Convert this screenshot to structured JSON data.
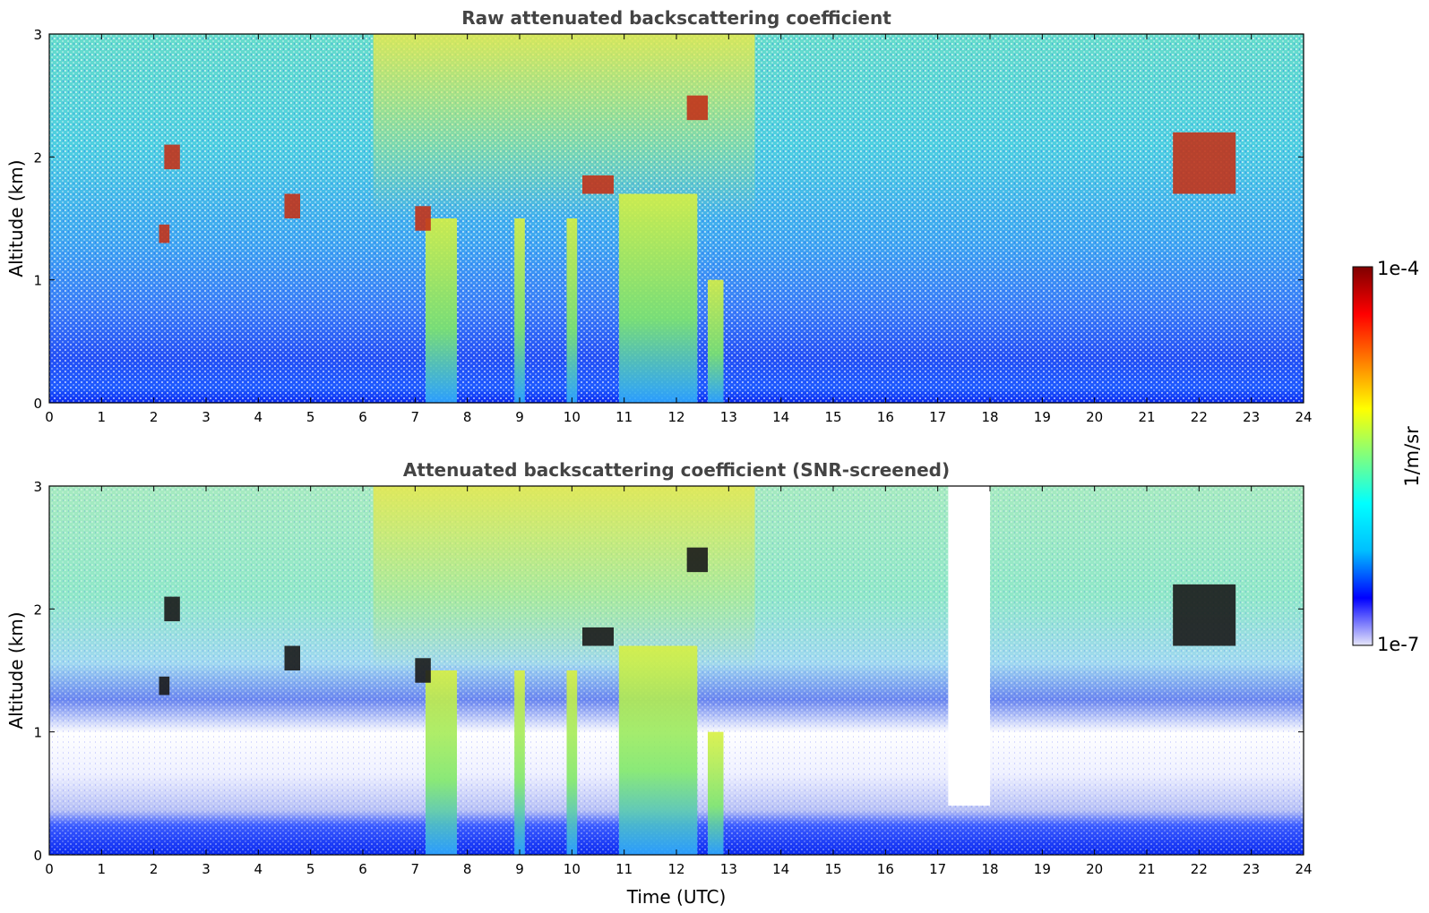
{
  "chart_data": [
    {
      "type": "heatmap",
      "title": "Raw attenuated backscattering coefficient",
      "xlabel": "",
      "ylabel": "Altitude (km)",
      "xlim": [
        0,
        24
      ],
      "ylim": [
        0,
        3
      ],
      "xticks": [
        "0",
        "1",
        "2",
        "3",
        "4",
        "5",
        "6",
        "7",
        "8",
        "9",
        "10",
        "11",
        "12",
        "13",
        "14",
        "15",
        "16",
        "17",
        "18",
        "19",
        "20",
        "21",
        "22",
        "23",
        "24"
      ],
      "yticks": [
        "0",
        "1",
        "2",
        "3"
      ],
      "clouds": [
        {
          "x": [
            2.2,
            2.5
          ],
          "y": [
            1.9,
            2.1
          ]
        },
        {
          "x": [
            2.1,
            2.3
          ],
          "y": [
            1.3,
            1.45
          ]
        },
        {
          "x": [
            4.5,
            4.8
          ],
          "y": [
            1.5,
            1.7
          ]
        },
        {
          "x": [
            7.0,
            7.3
          ],
          "y": [
            1.4,
            1.6
          ]
        },
        {
          "x": [
            10.2,
            10.8
          ],
          "y": [
            1.7,
            1.85
          ]
        },
        {
          "x": [
            12.2,
            12.6
          ],
          "y": [
            2.3,
            2.5
          ]
        },
        {
          "x": [
            21.5,
            22.7
          ],
          "y": [
            1.7,
            2.2
          ]
        }
      ],
      "columns": [
        {
          "x": [
            7.2,
            7.8
          ],
          "y": [
            0,
            1.5
          ]
        },
        {
          "x": [
            8.9,
            9.1
          ],
          "y": [
            0,
            1.5
          ]
        },
        {
          "x": [
            9.9,
            10.1
          ],
          "y": [
            0,
            1.5
          ]
        },
        {
          "x": [
            10.9,
            12.4
          ],
          "y": [
            0,
            1.7
          ]
        },
        {
          "x": [
            12.6,
            12.9
          ],
          "y": [
            0,
            1.0
          ]
        }
      ]
    },
    {
      "type": "heatmap",
      "title": "Attenuated backscattering coefficient (SNR-screened)",
      "xlabel": "Time (UTC)",
      "ylabel": "Altitude (km)",
      "xlim": [
        0,
        24
      ],
      "ylim": [
        0,
        3
      ],
      "xticks": [
        "0",
        "1",
        "2",
        "3",
        "4",
        "5",
        "6",
        "7",
        "8",
        "9",
        "10",
        "11",
        "12",
        "13",
        "14",
        "15",
        "16",
        "17",
        "18",
        "19",
        "20",
        "21",
        "22",
        "23",
        "24"
      ],
      "yticks": [
        "0",
        "1",
        "2",
        "3"
      ],
      "masked_gap": {
        "x": [
          17.2,
          18.0
        ],
        "y": [
          0.4,
          3
        ]
      }
    }
  ],
  "colorbar": {
    "label": "1/m/sr",
    "max_label": "1e-4",
    "min_label": "1e-7",
    "colormap": "jet",
    "colors": [
      "#e6e6fa",
      "#0000ff",
      "#00bfff",
      "#00ffff",
      "#7fff7f",
      "#ffff00",
      "#ff7f00",
      "#ff0000",
      "#7f0000"
    ]
  }
}
